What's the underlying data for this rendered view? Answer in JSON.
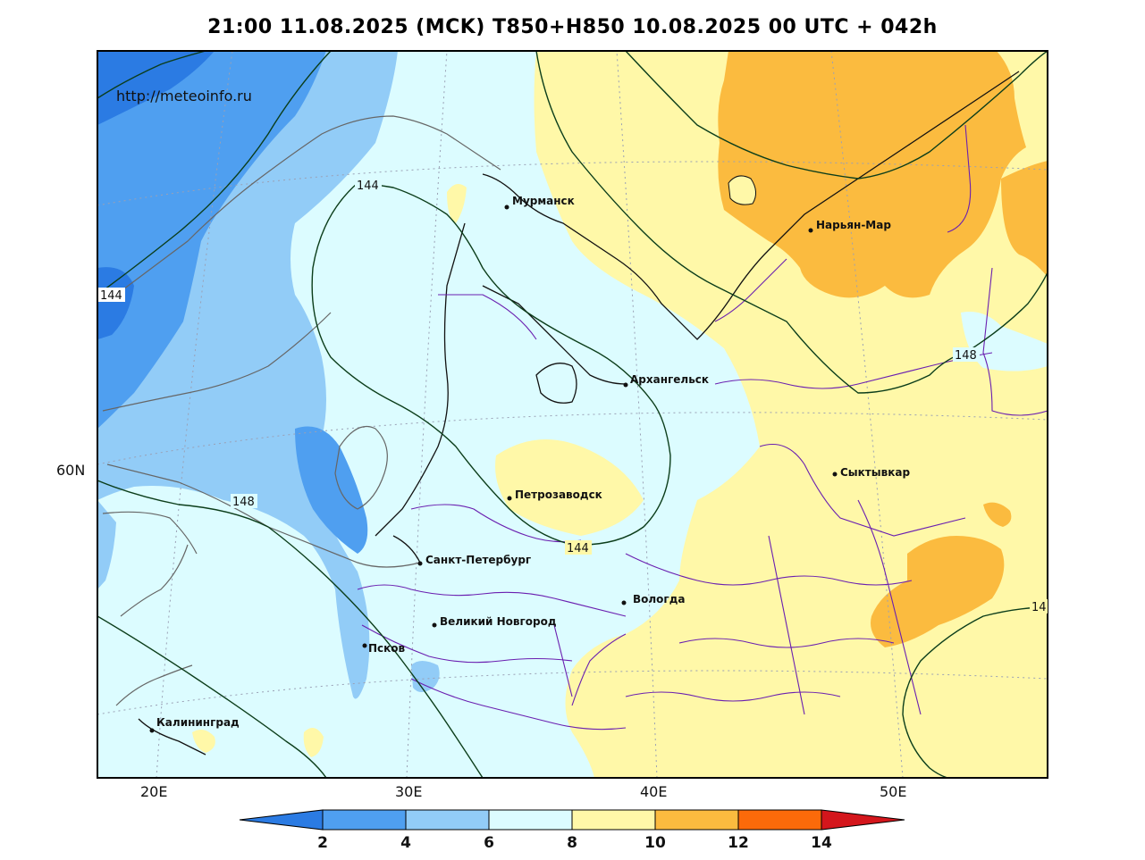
{
  "title": "21:00 11.08.2025 (MCK) T850+H850 10.08.2025 00 UTC + 042h",
  "watermark": "http://meteoinfo.ru",
  "lat_labels": [
    "60N"
  ],
  "lon_labels": [
    "20E",
    "30E",
    "40E",
    "50E"
  ],
  "cities": [
    {
      "name": "Мурманск"
    },
    {
      "name": "Нарьян-Мар"
    },
    {
      "name": "Архангельск"
    },
    {
      "name": "Сыктывкар"
    },
    {
      "name": "Петрозаводск"
    },
    {
      "name": "Санкт-Петербург"
    },
    {
      "name": "Вологда"
    },
    {
      "name": "Великий Новгород"
    },
    {
      "name": "Псков"
    },
    {
      "name": "Калининград"
    }
  ],
  "contour_labels": [
    "144",
    "144",
    "148",
    "144",
    "148",
    "14"
  ],
  "colorbar": {
    "levels": [
      "2",
      "4",
      "6",
      "8",
      "10",
      "12",
      "14"
    ],
    "colors": [
      "#2b7be3",
      "#4f9ff0",
      "#92ccf7",
      "#dcfcff",
      "#fff8a8",
      "#fbbb3f",
      "#fb6a0a",
      "#d4161c"
    ]
  },
  "legend_colors": {
    "t2_4": "#4f9ff0",
    "t4_6": "#92ccf7",
    "t6_8": "#dcfcff",
    "t8_10": "#fff8a8",
    "t10_12": "#fbbb3f",
    "below2": "#2b7be3"
  }
}
